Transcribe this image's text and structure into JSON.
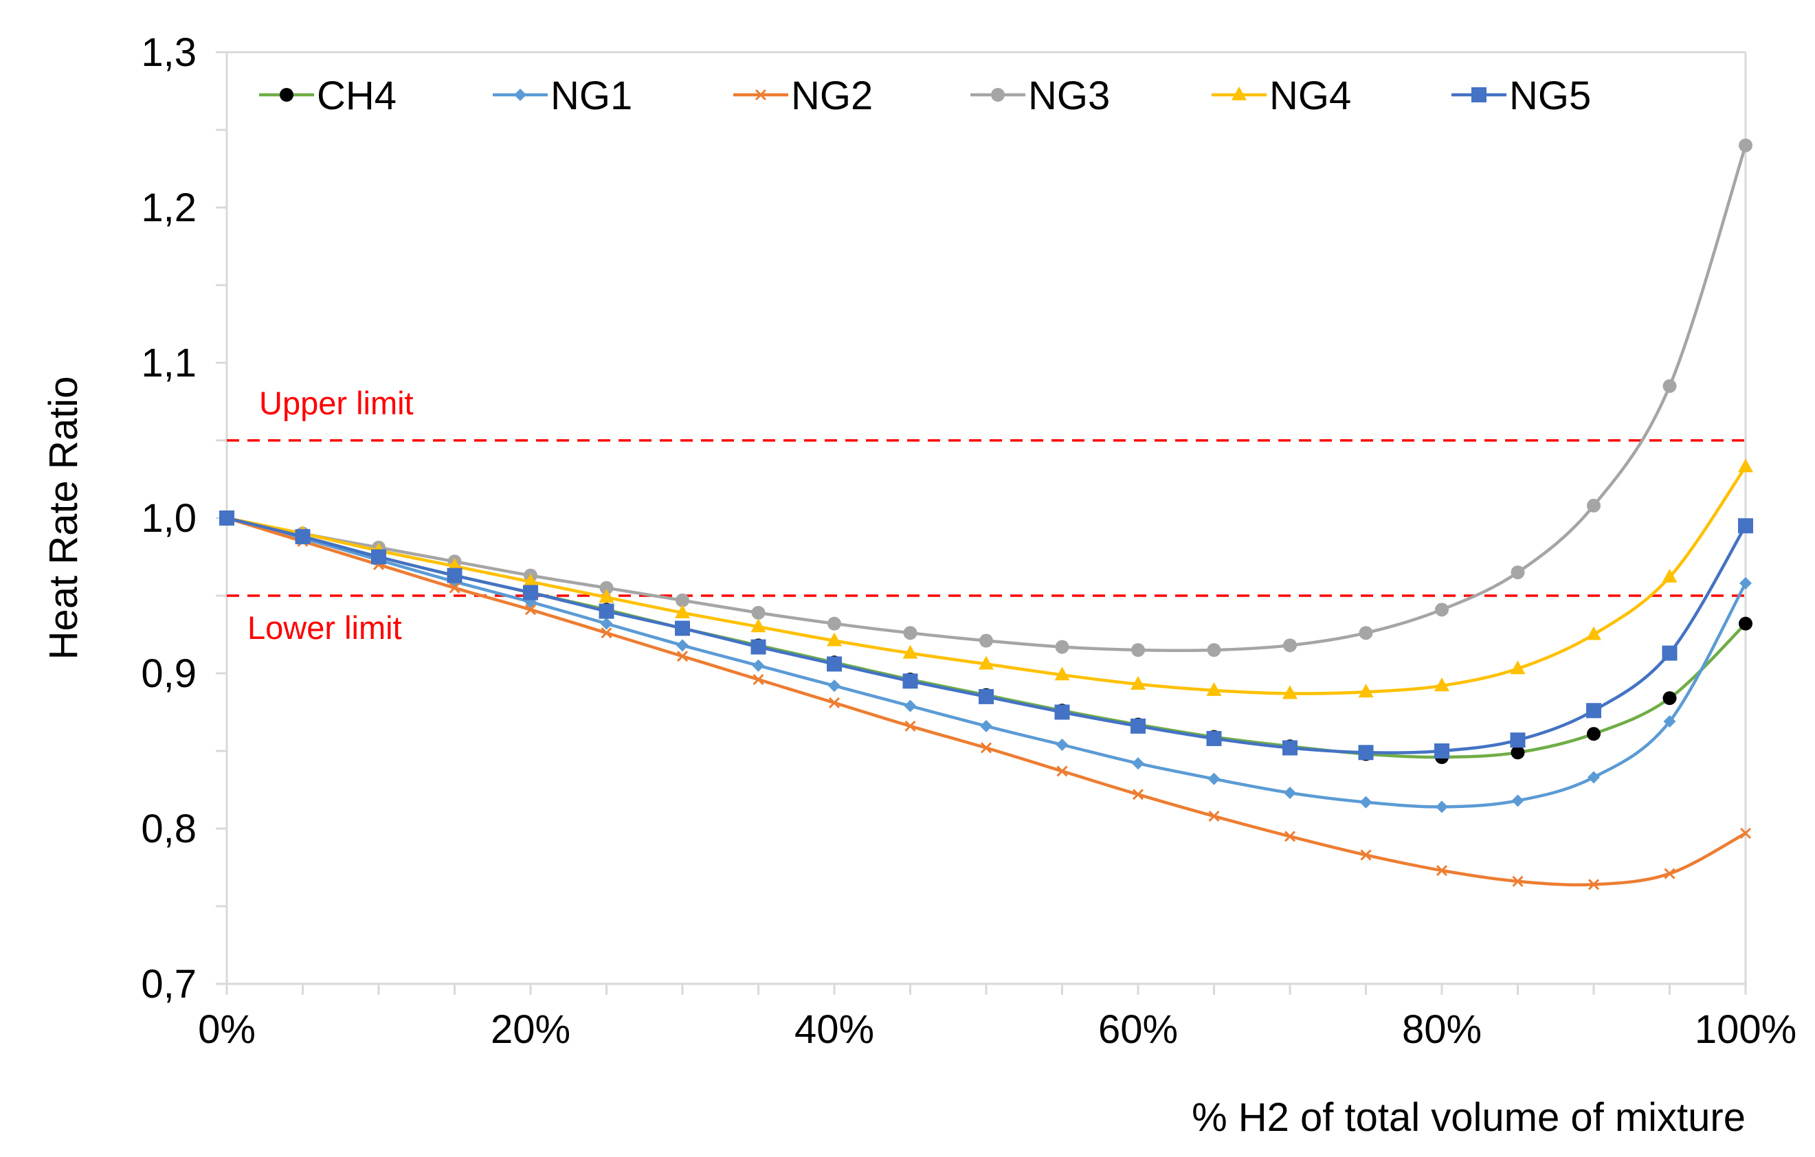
{
  "chart_data": {
    "type": "line",
    "title": "",
    "xlabel": "% H2 of total volume of mixture",
    "ylabel": "Heat Rate Ratio",
    "xlim": [
      0,
      100
    ],
    "ylim": [
      0.7,
      1.3
    ],
    "grid": false,
    "legend_position": "top",
    "x_ticks": [
      0,
      20,
      40,
      60,
      80,
      100
    ],
    "x_tick_labels": [
      "0%",
      "20%",
      "40%",
      "60%",
      "80%",
      "100%"
    ],
    "y_ticks": [
      0.7,
      0.8,
      0.9,
      1.0,
      1.1,
      1.2,
      1.3
    ],
    "y_tick_labels": [
      "0,7",
      "0,8",
      "0,9",
      "1,0",
      "1,1",
      "1,2",
      "1,3"
    ],
    "x": [
      0,
      5,
      10,
      15,
      20,
      25,
      30,
      35,
      40,
      45,
      50,
      55,
      60,
      65,
      70,
      75,
      80,
      85,
      90,
      95,
      100
    ],
    "series": [
      {
        "name": "CH4",
        "line_color": "#70ad47",
        "marker_color": "#000000",
        "marker": "circle",
        "values": [
          1.0,
          0.988,
          0.975,
          0.963,
          0.952,
          0.941,
          0.929,
          0.918,
          0.907,
          0.896,
          0.886,
          0.876,
          0.867,
          0.859,
          0.853,
          0.848,
          0.846,
          0.849,
          0.861,
          0.884,
          0.932
        ]
      },
      {
        "name": "NG1",
        "line_color": "#5b9bd5",
        "marker_color": "#5b9bd5",
        "marker": "diamond",
        "values": [
          1.0,
          0.987,
          0.973,
          0.959,
          0.946,
          0.932,
          0.918,
          0.905,
          0.892,
          0.879,
          0.866,
          0.854,
          0.842,
          0.832,
          0.823,
          0.817,
          0.814,
          0.818,
          0.833,
          0.869,
          0.958
        ]
      },
      {
        "name": "NG2",
        "line_color": "#ed7d31",
        "marker_color": "#ed7d31",
        "marker": "x",
        "values": [
          1.0,
          0.985,
          0.97,
          0.955,
          0.941,
          0.926,
          0.911,
          0.896,
          0.881,
          0.866,
          0.852,
          0.837,
          0.822,
          0.808,
          0.795,
          0.783,
          0.773,
          0.766,
          0.764,
          0.771,
          0.797
        ]
      },
      {
        "name": "NG3",
        "line_color": "#a5a5a5",
        "marker_color": "#a5a5a5",
        "marker": "circle",
        "values": [
          1.0,
          0.99,
          0.981,
          0.972,
          0.963,
          0.955,
          0.947,
          0.939,
          0.932,
          0.926,
          0.921,
          0.917,
          0.915,
          0.915,
          0.918,
          0.926,
          0.941,
          0.965,
          1.008,
          1.085,
          1.24
        ]
      },
      {
        "name": "NG4",
        "line_color": "#ffc000",
        "marker_color": "#ffc000",
        "marker": "triangle",
        "values": [
          1.0,
          0.99,
          0.979,
          0.969,
          0.959,
          0.949,
          0.939,
          0.93,
          0.921,
          0.913,
          0.906,
          0.899,
          0.893,
          0.889,
          0.887,
          0.888,
          0.892,
          0.903,
          0.925,
          0.962,
          1.033
        ]
      },
      {
        "name": "NG5",
        "line_color": "#4472c4",
        "marker_color": "#4472c4",
        "marker": "square",
        "values": [
          1.0,
          0.988,
          0.975,
          0.963,
          0.952,
          0.94,
          0.929,
          0.917,
          0.906,
          0.895,
          0.885,
          0.875,
          0.866,
          0.858,
          0.852,
          0.849,
          0.85,
          0.857,
          0.876,
          0.913,
          0.995
        ]
      }
    ],
    "reference_lines": [
      {
        "label": "Upper limit",
        "y": 1.05,
        "color": "#ff0000",
        "style": "dashed"
      },
      {
        "label": "Lower limit",
        "y": 0.95,
        "color": "#ff0000",
        "style": "dashed"
      }
    ]
  }
}
